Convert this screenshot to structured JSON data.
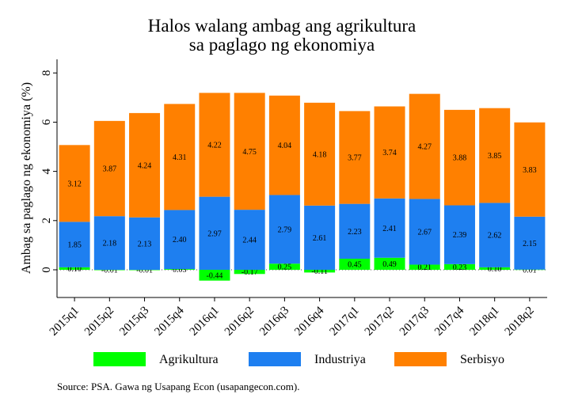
{
  "chart_data": {
    "type": "bar",
    "stacked": true,
    "title": [
      "Halos walang ambag ang agrikultura",
      "sa paglago ng ekonomiya"
    ],
    "xlabel": "",
    "ylabel": "Ambag sa paglago ng ekonomiya (%)",
    "ylim": [
      -1,
      8.5
    ],
    "yticks": [
      0,
      2,
      4,
      6,
      8
    ],
    "yticks_labels": [
      "0",
      "2",
      "4",
      "6",
      "8"
    ],
    "grid": false,
    "legend_position": "bottom",
    "categories": [
      "2015q1",
      "2015q2",
      "2015q3",
      "2015q4",
      "2016q1",
      "2016q2",
      "2016q3",
      "2016q4",
      "2017q1",
      "2017q2",
      "2017q3",
      "2017q4",
      "2018q1",
      "2018q2"
    ],
    "series": [
      {
        "name": "Agrikultura",
        "color": "#00ff00",
        "values": [
          0.1,
          -0.01,
          -0.01,
          0.03,
          -0.44,
          -0.17,
          0.25,
          -0.11,
          0.45,
          0.49,
          0.21,
          0.23,
          0.1,
          0.01
        ],
        "labels": [
          "0.10",
          "-0.01",
          "-0.01",
          "0.03",
          "-0.44",
          "-0.17",
          "0.25",
          "-0.11",
          "0.45",
          "0.49",
          "0.21",
          "0.23",
          "0.10",
          "0.01"
        ]
      },
      {
        "name": "Industriya",
        "color": "#1e7ff0",
        "values": [
          1.85,
          2.18,
          2.13,
          2.4,
          2.97,
          2.44,
          2.79,
          2.61,
          2.23,
          2.41,
          2.67,
          2.39,
          2.62,
          2.15
        ],
        "labels": [
          "1.85",
          "2.18",
          "2.13",
          "2.40",
          "2.97",
          "2.44",
          "2.79",
          "2.61",
          "2.23",
          "2.41",
          "2.67",
          "2.39",
          "2.62",
          "2.15"
        ]
      },
      {
        "name": "Serbisyo",
        "color": "#ff8000",
        "values": [
          3.12,
          3.87,
          4.24,
          4.31,
          4.22,
          4.75,
          4.04,
          4.18,
          3.77,
          3.74,
          4.27,
          3.88,
          3.85,
          3.83
        ],
        "labels": [
          "3.12",
          "3.87",
          "4.24",
          "4.31",
          "4.22",
          "4.75",
          "4.04",
          "4.18",
          "3.77",
          "3.74",
          "4.27",
          "3.88",
          "3.85",
          "3.83"
        ]
      }
    ]
  },
  "source": "Source: PSA. Gawa ng Usapang Econ (usapangecon.com)."
}
